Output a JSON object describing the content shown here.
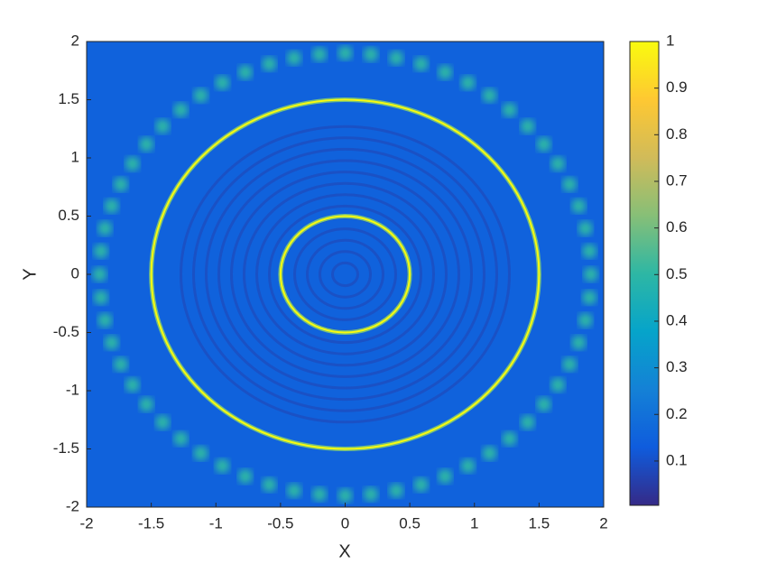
{
  "chart_data": {
    "type": "heatmap",
    "xlabel": "X",
    "ylabel": "Y",
    "xlim": [
      -2,
      2
    ],
    "ylim": [
      -2,
      2
    ],
    "xticks": [
      -2,
      -1.5,
      -1,
      -0.5,
      0,
      0.5,
      1,
      1.5,
      2
    ],
    "yticks": [
      -2,
      -1.5,
      -1,
      -0.5,
      0,
      0.5,
      1,
      1.5,
      2
    ],
    "background": 0.15,
    "rings": [
      {
        "radius": 0.5,
        "value": 1
      },
      {
        "radius": 1.5,
        "value": 1
      }
    ],
    "spots": {
      "radius": 1.9,
      "count": 60,
      "value": 0.5
    },
    "colormap": [
      "#352a87",
      "#0f5cdd",
      "#1481d6",
      "#06a4ca",
      "#2eb7a4",
      "#87bf77",
      "#d1bb59",
      "#fec832",
      "#f9fb0e"
    ],
    "clim": [
      0.005,
      1
    ],
    "cticks": [
      0.1,
      0.2,
      0.3,
      0.4,
      0.5,
      0.6,
      0.7,
      0.8,
      0.9,
      1
    ]
  }
}
